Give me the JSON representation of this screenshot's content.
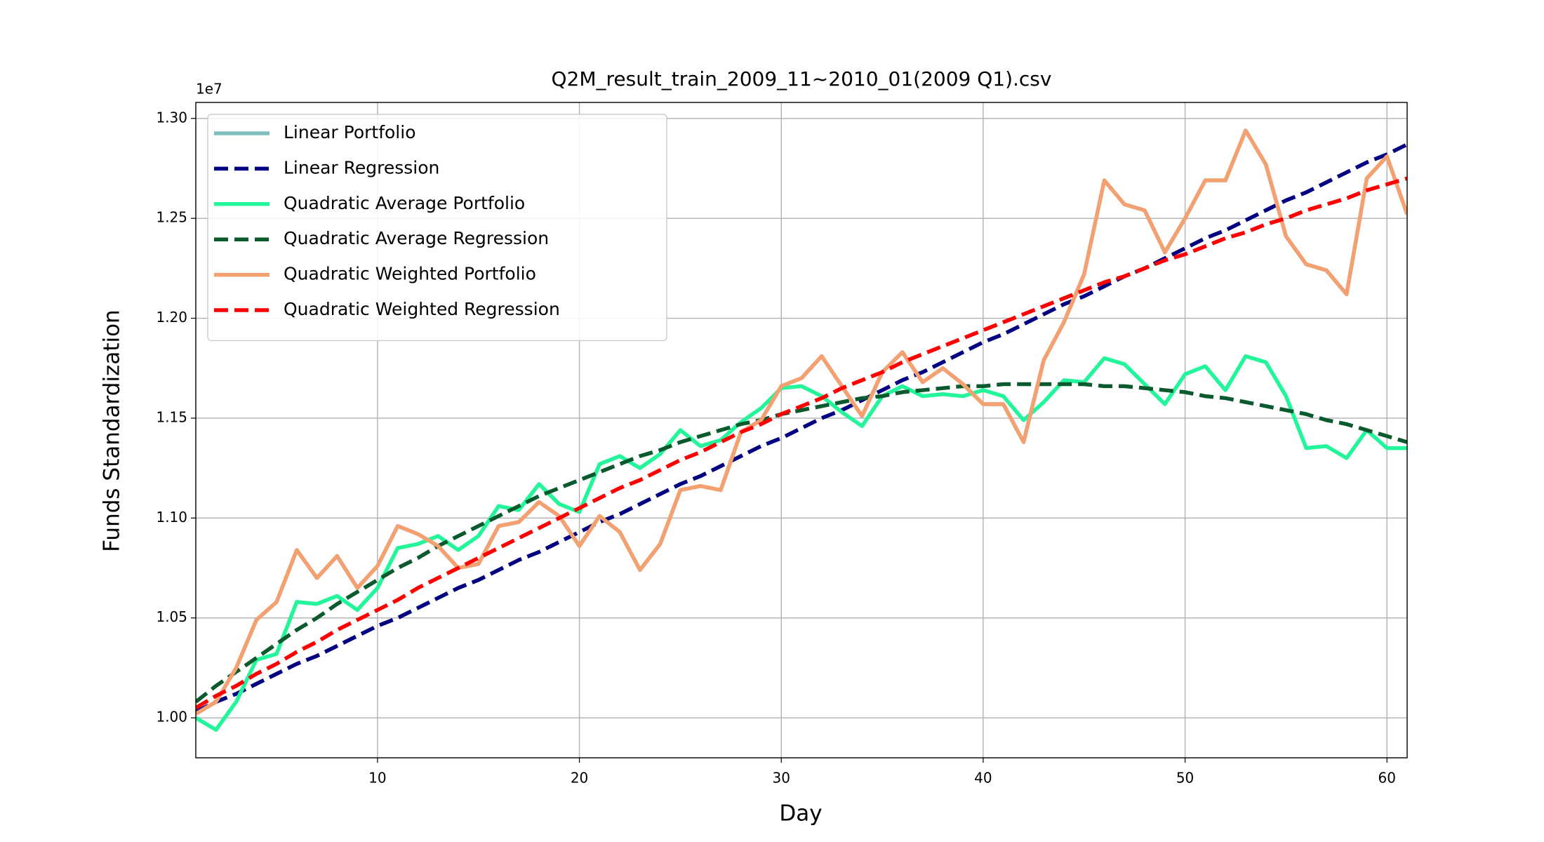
{
  "chart_data": {
    "type": "line",
    "title": "Q2M_result_train_2009_11~2010_01(2009 Q1).csv",
    "x_label": "Day",
    "y_label": "Funds Standardization",
    "y_offset_label": "1e7",
    "x": [
      1,
      2,
      3,
      4,
      5,
      6,
      7,
      8,
      9,
      10,
      11,
      12,
      13,
      14,
      15,
      16,
      17,
      18,
      19,
      20,
      21,
      22,
      23,
      24,
      25,
      26,
      27,
      28,
      29,
      30,
      31,
      32,
      33,
      34,
      35,
      36,
      37,
      38,
      39,
      40,
      41,
      42,
      43,
      44,
      45,
      46,
      47,
      48,
      49,
      50,
      51,
      52,
      53,
      54,
      55,
      56,
      57,
      58,
      59,
      60,
      61
    ],
    "xlim": [
      1,
      61
    ],
    "xticks": [
      10,
      20,
      30,
      40,
      50,
      60
    ],
    "ylim": [
      0.98,
      1.308
    ],
    "yticks": [
      {
        "value": 1.0,
        "label": "1.00"
      },
      {
        "value": 1.05,
        "label": "1.05"
      },
      {
        "value": 1.1,
        "label": "1.10"
      },
      {
        "value": 1.15,
        "label": "1.15"
      },
      {
        "value": 1.2,
        "label": "1.20"
      },
      {
        "value": 1.25,
        "label": "1.25"
      },
      {
        "value": 1.3,
        "label": "1.30"
      }
    ],
    "grid": true,
    "legend": "upper left",
    "series": [
      {
        "name": "Linear Portfolio",
        "color": "#80bfc0",
        "dashed": false,
        "values": [
          1.002,
          1.008,
          1.025,
          1.049,
          1.058,
          1.084,
          1.07,
          1.081,
          1.065,
          1.076,
          1.096,
          1.092,
          1.086,
          1.075,
          1.077,
          1.096,
          1.098,
          1.108,
          1.101,
          1.086,
          1.101,
          1.093,
          1.074,
          1.087,
          1.114,
          1.116,
          1.114,
          1.143,
          1.149,
          1.166,
          1.17,
          1.181,
          1.166,
          1.151,
          1.173,
          1.183,
          1.168,
          1.175,
          1.167,
          1.157,
          1.157,
          1.138,
          1.179,
          1.198,
          1.222,
          1.269,
          1.257,
          1.254,
          1.233,
          1.25,
          1.269,
          1.269,
          1.294,
          1.277,
          1.241,
          1.227,
          1.224,
          1.212,
          1.27,
          1.281,
          1.252
        ]
      },
      {
        "name": "Linear Regression",
        "color": "#000080",
        "dashed": true,
        "values": [
          1.003,
          1.008,
          1.012,
          1.017,
          1.022,
          1.027,
          1.031,
          1.036,
          1.041,
          1.046,
          1.05,
          1.055,
          1.06,
          1.065,
          1.069,
          1.074,
          1.079,
          1.083,
          1.088,
          1.093,
          1.098,
          1.102,
          1.107,
          1.112,
          1.117,
          1.121,
          1.126,
          1.131,
          1.136,
          1.14,
          1.145,
          1.15,
          1.154,
          1.159,
          1.164,
          1.169,
          1.173,
          1.178,
          1.183,
          1.188,
          1.192,
          1.197,
          1.202,
          1.207,
          1.211,
          1.216,
          1.221,
          1.225,
          1.23,
          1.235,
          1.24,
          1.244,
          1.249,
          1.254,
          1.259,
          1.263,
          1.268,
          1.273,
          1.278,
          1.282,
          1.287
        ]
      },
      {
        "name": "Quadratic Average Portfolio",
        "color": "#22f59a",
        "dashed": false,
        "values": [
          1.0,
          0.994,
          1.008,
          1.029,
          1.032,
          1.058,
          1.057,
          1.061,
          1.054,
          1.065,
          1.085,
          1.087,
          1.091,
          1.084,
          1.091,
          1.106,
          1.104,
          1.117,
          1.107,
          1.103,
          1.127,
          1.131,
          1.125,
          1.132,
          1.144,
          1.136,
          1.139,
          1.148,
          1.155,
          1.165,
          1.166,
          1.161,
          1.153,
          1.146,
          1.161,
          1.166,
          1.161,
          1.162,
          1.161,
          1.164,
          1.161,
          1.149,
          1.158,
          1.169,
          1.168,
          1.18,
          1.177,
          1.167,
          1.157,
          1.172,
          1.176,
          1.164,
          1.181,
          1.178,
          1.161,
          1.135,
          1.136,
          1.13,
          1.144,
          1.135,
          1.135
        ]
      },
      {
        "name": "Quadratic Average Regression",
        "color": "#0b5a2e",
        "dashed": true,
        "values": [
          1.008,
          1.016,
          1.023,
          1.03,
          1.037,
          1.044,
          1.05,
          1.057,
          1.063,
          1.069,
          1.075,
          1.08,
          1.086,
          1.091,
          1.096,
          1.101,
          1.106,
          1.111,
          1.115,
          1.119,
          1.123,
          1.127,
          1.131,
          1.134,
          1.138,
          1.141,
          1.144,
          1.147,
          1.149,
          1.152,
          1.154,
          1.156,
          1.158,
          1.16,
          1.161,
          1.163,
          1.164,
          1.165,
          1.166,
          1.166,
          1.167,
          1.167,
          1.167,
          1.167,
          1.167,
          1.166,
          1.166,
          1.165,
          1.164,
          1.163,
          1.161,
          1.16,
          1.158,
          1.156,
          1.154,
          1.152,
          1.149,
          1.147,
          1.144,
          1.141,
          1.138
        ]
      },
      {
        "name": "Quadratic Weighted Portfolio",
        "color": "#f4a070",
        "dashed": false,
        "values": [
          1.002,
          1.008,
          1.025,
          1.049,
          1.058,
          1.084,
          1.07,
          1.081,
          1.065,
          1.076,
          1.096,
          1.092,
          1.086,
          1.075,
          1.077,
          1.096,
          1.098,
          1.108,
          1.101,
          1.086,
          1.101,
          1.093,
          1.074,
          1.087,
          1.114,
          1.116,
          1.114,
          1.143,
          1.149,
          1.166,
          1.17,
          1.181,
          1.166,
          1.151,
          1.173,
          1.183,
          1.168,
          1.175,
          1.167,
          1.157,
          1.157,
          1.138,
          1.179,
          1.198,
          1.222,
          1.269,
          1.257,
          1.254,
          1.233,
          1.25,
          1.269,
          1.269,
          1.294,
          1.277,
          1.241,
          1.227,
          1.224,
          1.212,
          1.27,
          1.281,
          1.252
        ]
      },
      {
        "name": "Quadratic Weighted Regression",
        "color": "#ff0000",
        "dashed": true,
        "values": [
          1.005,
          1.011,
          1.016,
          1.022,
          1.027,
          1.033,
          1.038,
          1.044,
          1.049,
          1.054,
          1.059,
          1.065,
          1.07,
          1.075,
          1.08,
          1.085,
          1.09,
          1.095,
          1.1,
          1.105,
          1.11,
          1.115,
          1.119,
          1.124,
          1.129,
          1.133,
          1.138,
          1.143,
          1.147,
          1.152,
          1.156,
          1.16,
          1.165,
          1.169,
          1.173,
          1.178,
          1.182,
          1.186,
          1.19,
          1.194,
          1.198,
          1.202,
          1.206,
          1.21,
          1.214,
          1.218,
          1.221,
          1.225,
          1.229,
          1.232,
          1.236,
          1.24,
          1.243,
          1.247,
          1.25,
          1.254,
          1.257,
          1.26,
          1.264,
          1.267,
          1.27
        ]
      }
    ]
  }
}
